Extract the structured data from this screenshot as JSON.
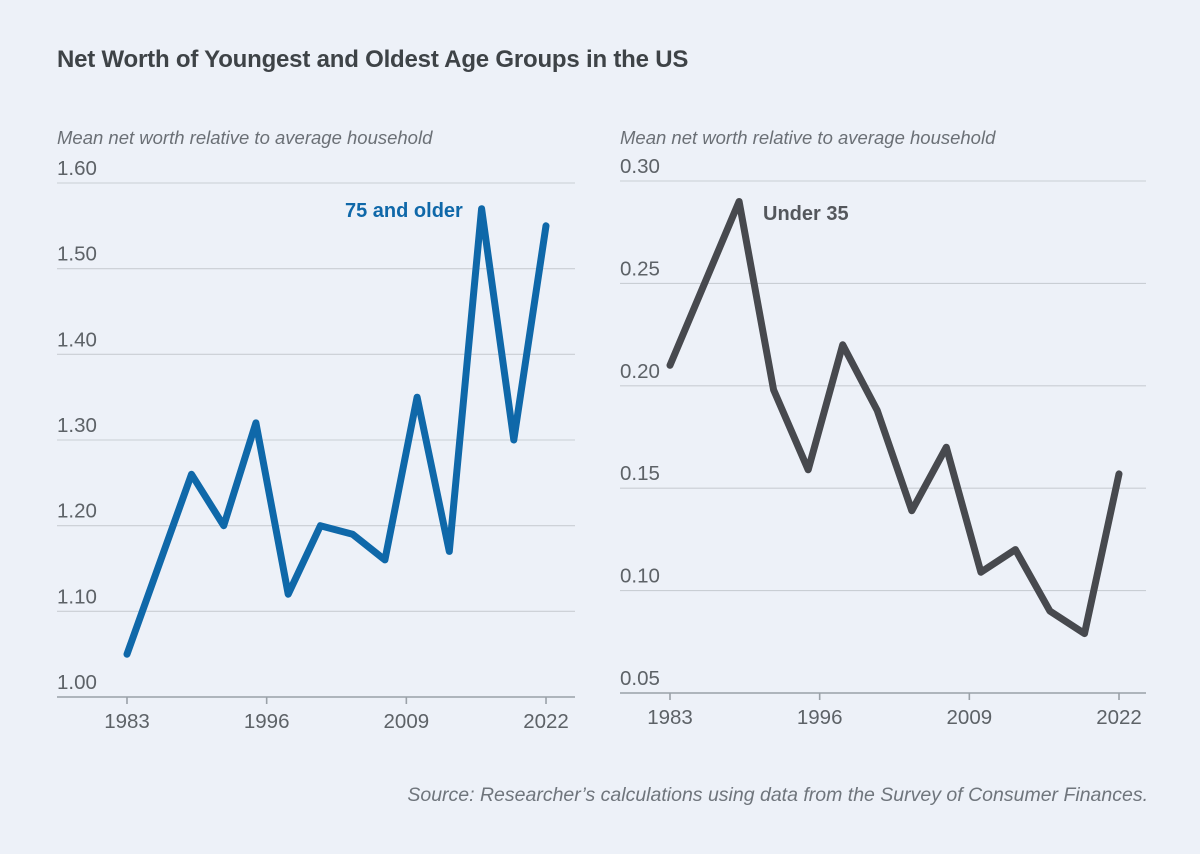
{
  "page": {
    "title": "Net Worth of Youngest and Oldest Age Groups in the US",
    "source_note": "Source: Researcher’s calculations using data from the Survey of Consumer Finances."
  },
  "colors": {
    "background": "#edf1f8",
    "title": "#3e4347",
    "blue_series": "#0f68a9",
    "dark_series": "#47494e",
    "gridline": "#c9ced4",
    "axis_line": "#9aa1a8",
    "tick_label": "#5d6267",
    "axis_caption": "#6b7076",
    "source": "#6f757c"
  },
  "chart_data": [
    {
      "type": "line",
      "title": "75 and older",
      "series_label": "75 and older",
      "axis_title": "Mean net worth relative to average household",
      "xlabel": "",
      "ylabel": "Mean net worth relative to average household",
      "x": [
        1983,
        1989,
        1992,
        1995,
        1998,
        2001,
        2004,
        2007,
        2010,
        2013,
        2016,
        2019,
        2022
      ],
      "values": [
        1.05,
        1.26,
        1.2,
        1.32,
        1.12,
        1.2,
        1.19,
        1.16,
        1.35,
        1.17,
        1.57,
        1.3,
        1.55
      ],
      "x_ticks": [
        1983,
        1996,
        2009,
        2022
      ],
      "x_tick_labels": [
        "1983",
        "1996",
        "2009",
        "2022"
      ],
      "y_ticks": [
        1.0,
        1.1,
        1.2,
        1.3,
        1.4,
        1.5,
        1.6
      ],
      "y_tick_labels": [
        "1.00",
        "1.10",
        "1.20",
        "1.30",
        "1.40",
        "1.50",
        "1.60"
      ],
      "ylim": [
        1.0,
        1.6
      ],
      "line_color": "#0f68a9",
      "grid": true,
      "legend_position": "inline-label"
    },
    {
      "type": "line",
      "title": "Under 35",
      "series_label": "Under 35",
      "axis_title": "Mean net worth relative to average household",
      "xlabel": "",
      "ylabel": "Mean net worth relative to average household",
      "x": [
        1983,
        1989,
        1992,
        1995,
        1998,
        2001,
        2004,
        2007,
        2010,
        2013,
        2016,
        2019,
        2022
      ],
      "values": [
        0.21,
        0.29,
        0.198,
        0.159,
        0.22,
        0.188,
        0.139,
        0.17,
        0.109,
        0.12,
        0.09,
        0.079,
        0.157
      ],
      "x_ticks": [
        1983,
        1996,
        2009,
        2022
      ],
      "x_tick_labels": [
        "1983",
        "1996",
        "2009",
        "2022"
      ],
      "y_ticks": [
        0.05,
        0.1,
        0.15,
        0.2,
        0.25,
        0.3
      ],
      "y_tick_labels": [
        "0.05",
        "0.10",
        "0.15",
        "0.20",
        "0.25",
        "0.30"
      ],
      "ylim": [
        0.05,
        0.3
      ],
      "line_color": "#47494e",
      "grid": true,
      "legend_position": "inline-label"
    }
  ]
}
